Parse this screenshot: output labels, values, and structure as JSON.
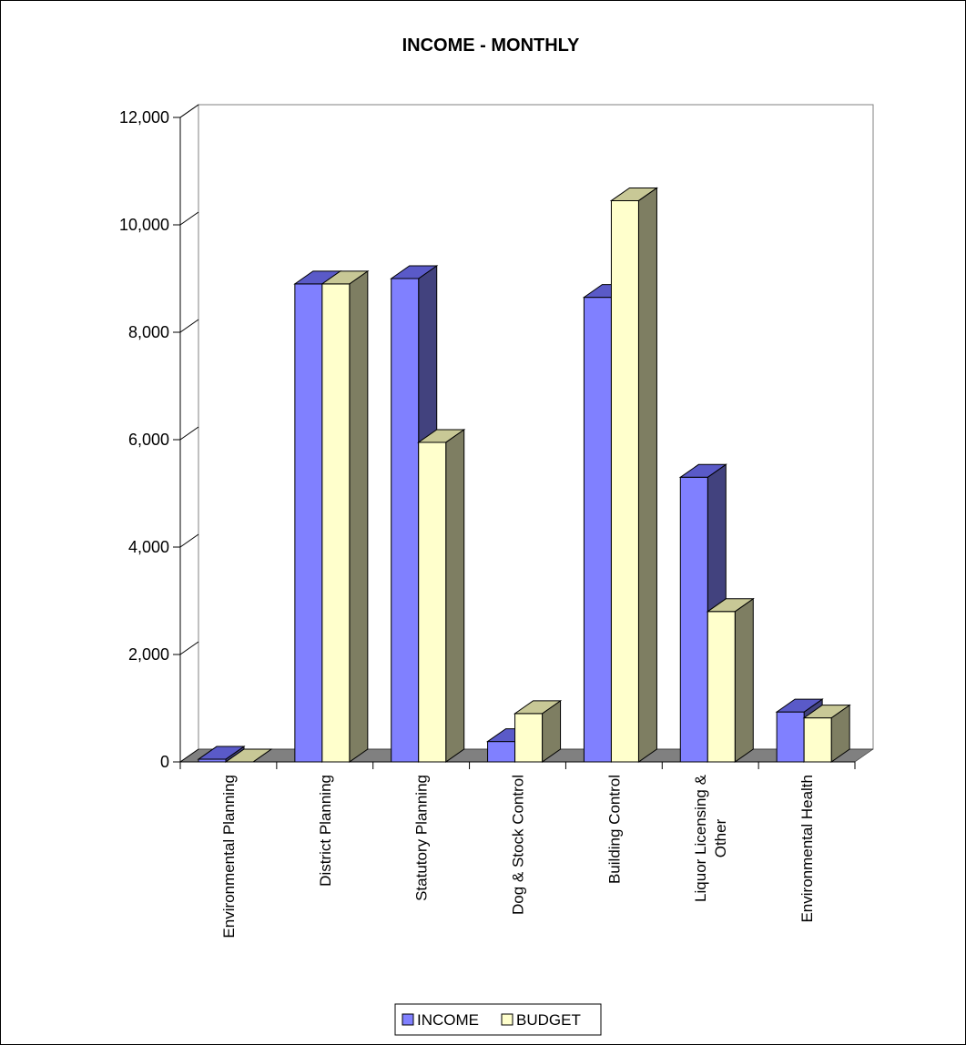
{
  "chart_data": {
    "type": "bar",
    "title": "INCOME - MONTHLY",
    "xlabel": "",
    "ylabel": "",
    "ylim": [
      0,
      12000
    ],
    "y_ticks": [
      "0",
      "2,000",
      "4,000",
      "6,000",
      "8,000",
      "10,000",
      "12,000"
    ],
    "categories": [
      [
        "Environmental Planning"
      ],
      [
        "District Planning"
      ],
      [
        "Statutory Planning"
      ],
      [
        "Dog & Stock Control"
      ],
      [
        "Building Control"
      ],
      [
        "Liquor Licensing &",
        "Other"
      ],
      [
        "Environmental Health"
      ]
    ],
    "series": [
      {
        "name": "INCOME",
        "values": [
          50,
          8900,
          9000,
          380,
          8650,
          5300,
          930
        ],
        "color": "#8080ff",
        "top_color": "#5a5ac8",
        "side_color": "#42427e"
      },
      {
        "name": "BUDGET",
        "values": [
          0,
          8900,
          5950,
          900,
          10450,
          2800,
          820
        ],
        "color": "#ffffcc",
        "top_color": "#c8c896",
        "side_color": "#7e7e62"
      }
    ],
    "grid": false,
    "legend": "bottom",
    "style": "3d-clustered-column",
    "wall_color": "#ffffff",
    "floor_color": "#808080"
  }
}
